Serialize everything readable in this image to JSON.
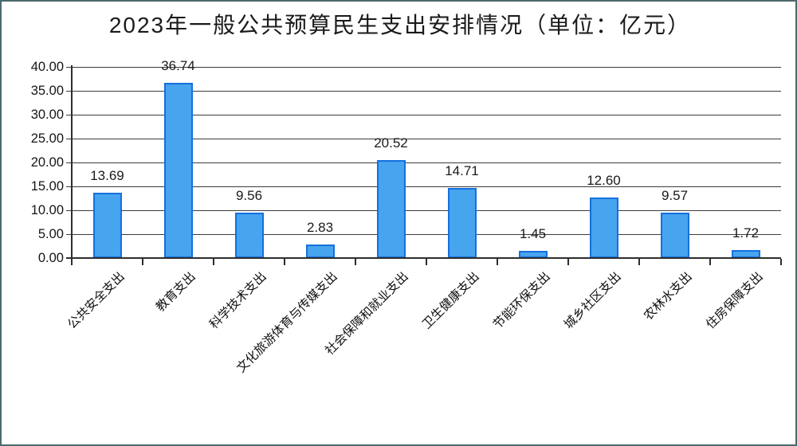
{
  "chart_data": {
    "type": "bar",
    "title": "2023年一般公共预算民生支出安排情况（单位：亿元）",
    "categories": [
      "公共安全支出",
      "教育支出",
      "科学技术支出",
      "文化旅游体育与传媒支出",
      "社会保障和就业支出",
      "卫生健康支出",
      "节能环保支出",
      "城乡社区支出",
      "农林水支出",
      "住房保障支出"
    ],
    "values": [
      13.69,
      36.74,
      9.56,
      2.83,
      20.52,
      14.71,
      1.45,
      12.6,
      9.57,
      1.72
    ],
    "value_labels": [
      "13.69",
      "36.74",
      "9.56",
      "2.83",
      "20.52",
      "14.71",
      "1.45",
      "12.60",
      "9.57",
      "1.72"
    ],
    "y_ticks": [
      "40.00",
      "35.00",
      "30.00",
      "25.00",
      "20.00",
      "15.00",
      "10.00",
      "5.00",
      "0.00"
    ],
    "ylim": [
      0,
      40
    ],
    "y_step": 5,
    "grid": true,
    "legend": "none",
    "xlabel": "",
    "ylabel": "",
    "colors": {
      "bar_fill": "#47A4EE",
      "bar_border": "#1570DE",
      "grid_line": "#3b3b3b",
      "axis_line": "#2e2e2e",
      "text": "#1a1a1a",
      "frame_border": "#4d6a6e",
      "background": "#ffffff"
    }
  }
}
